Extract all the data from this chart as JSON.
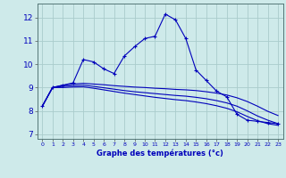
{
  "xlabel": "Graphe des températures (°c)",
  "bg_color": "#ceeaea",
  "line_color": "#0000bb",
  "grid_color": "#aacccc",
  "xlim": [
    -0.5,
    23.5
  ],
  "ylim": [
    6.8,
    12.6
  ],
  "yticks": [
    7,
    8,
    9,
    10,
    11,
    12
  ],
  "xticks": [
    0,
    1,
    2,
    3,
    4,
    5,
    6,
    7,
    8,
    9,
    10,
    11,
    12,
    13,
    14,
    15,
    16,
    17,
    18,
    19,
    20,
    21,
    22,
    23
  ],
  "main_temps": [
    8.2,
    9.0,
    9.1,
    9.2,
    10.2,
    10.1,
    9.8,
    9.6,
    10.35,
    10.75,
    11.1,
    11.2,
    12.15,
    11.9,
    11.1,
    9.75,
    9.3,
    8.85,
    8.6,
    7.85,
    7.6,
    7.55,
    7.5,
    7.45
  ],
  "line2_temps": [
    8.2,
    9.0,
    9.1,
    9.15,
    9.18,
    9.15,
    9.12,
    9.08,
    9.05,
    9.02,
    9.0,
    8.97,
    8.95,
    8.92,
    8.9,
    8.87,
    8.82,
    8.76,
    8.68,
    8.56,
    8.4,
    8.2,
    7.98,
    7.8
  ],
  "line3_temps": [
    8.2,
    9.0,
    9.05,
    9.08,
    9.1,
    9.05,
    8.99,
    8.93,
    8.87,
    8.82,
    8.78,
    8.74,
    8.7,
    8.66,
    8.63,
    8.58,
    8.52,
    8.44,
    8.34,
    8.2,
    8.0,
    7.78,
    7.6,
    7.45
  ],
  "line4_temps": [
    8.2,
    9.0,
    9.0,
    9.02,
    9.03,
    8.97,
    8.9,
    8.83,
    8.76,
    8.7,
    8.64,
    8.58,
    8.53,
    8.48,
    8.44,
    8.38,
    8.31,
    8.22,
    8.11,
    7.96,
    7.76,
    7.58,
    7.45,
    7.38
  ]
}
